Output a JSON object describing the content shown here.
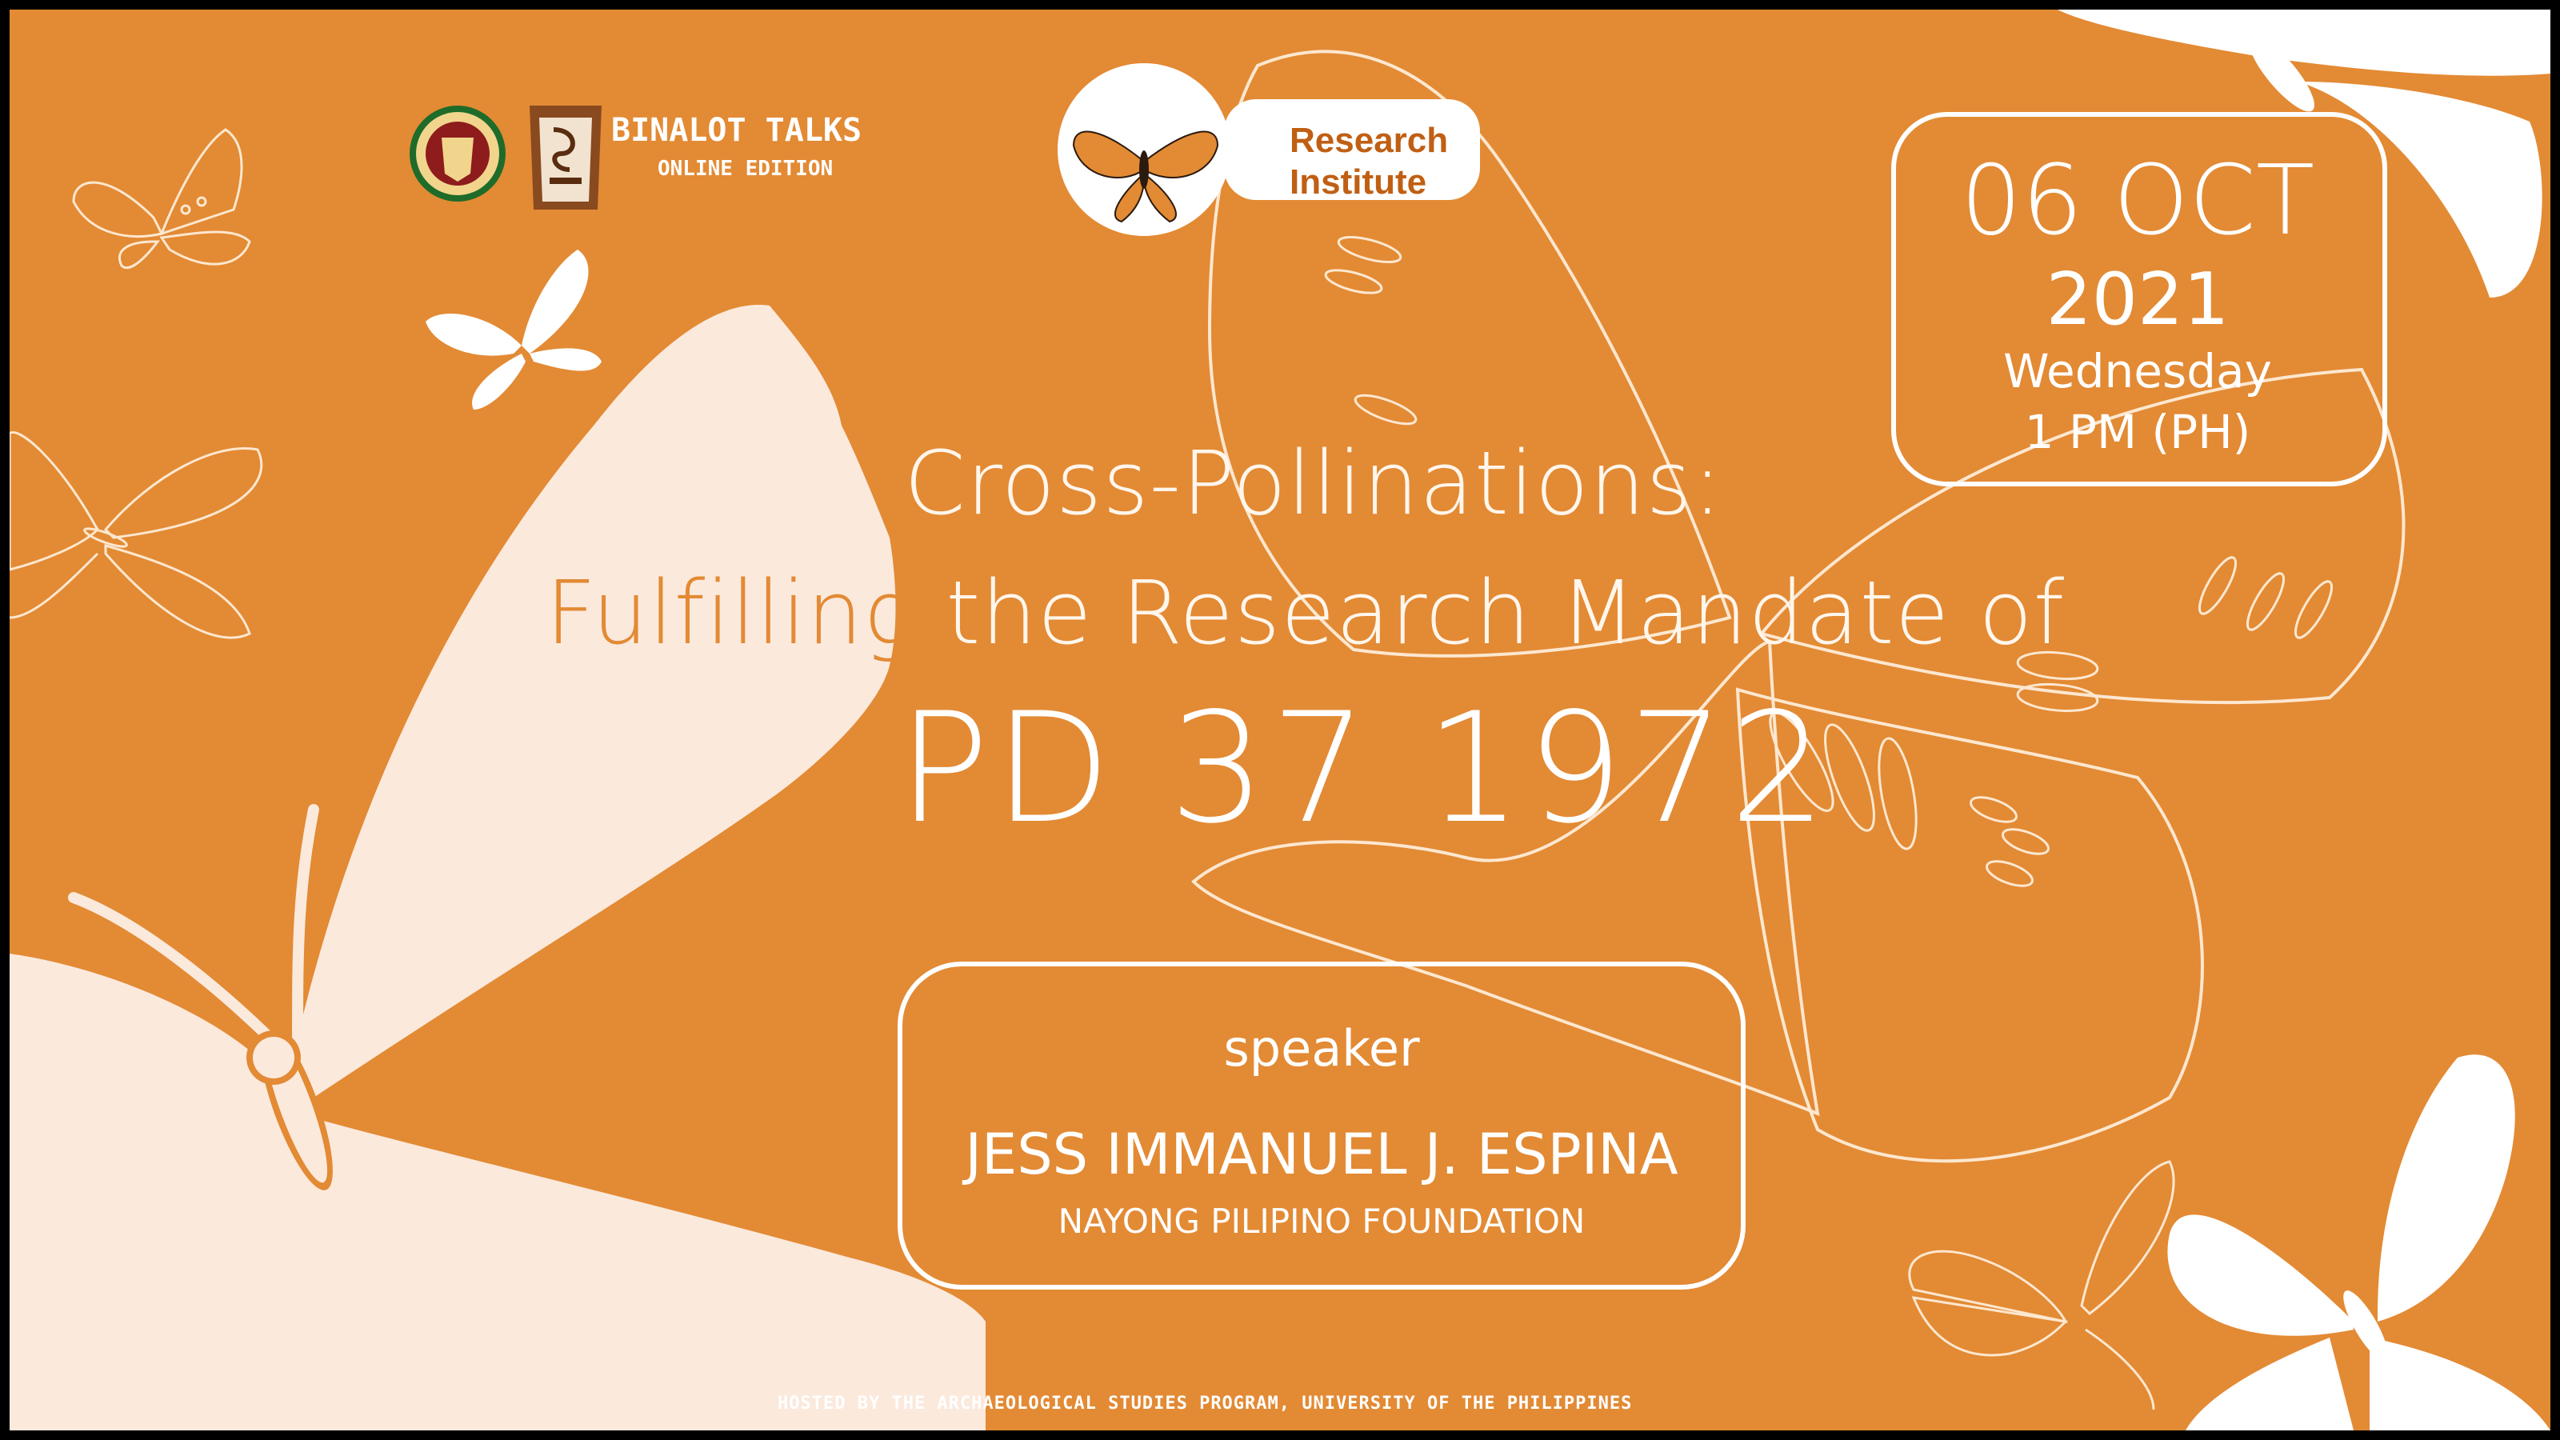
{
  "header": {
    "event_name": "BINALOT TALKS",
    "event_edition": "ONLINE EDITION",
    "institute_logo_label": "Research Institute",
    "institute_logo_line1": "Research",
    "institute_logo_line2": "Institute"
  },
  "title": {
    "line1": "Cross-Pollinations:",
    "line2_accent": "Fulfilling",
    "line2_rest": " the Research Mandate of",
    "line3": "PD 37 1972"
  },
  "schedule": {
    "date": "06 OCT",
    "year": "2021",
    "weekday": "Wednesday",
    "time": "1 PM (PH)"
  },
  "speaker": {
    "label": "speaker",
    "name": "JESS IMMANUEL J. ESPINA",
    "affiliation": "NAYONG PILIPINO FOUNDATION"
  },
  "footer": {
    "hosted_by": "HOSTED BY THE ARCHAEOLOGICAL STUDIES PROGRAM, UNIVERSITY OF THE PHILIPPINES"
  },
  "colors": {
    "background": "#e38a34",
    "cream": "#fbe9dc",
    "white": "#ffffff",
    "accent_dark": "#c05f13",
    "seal_green": "#1f6b2a",
    "seal_red": "#8e1c1c"
  },
  "icons": [
    "butterfly-icon",
    "up-seal-logo",
    "binalot-jar-logo",
    "research-institute-logo"
  ]
}
